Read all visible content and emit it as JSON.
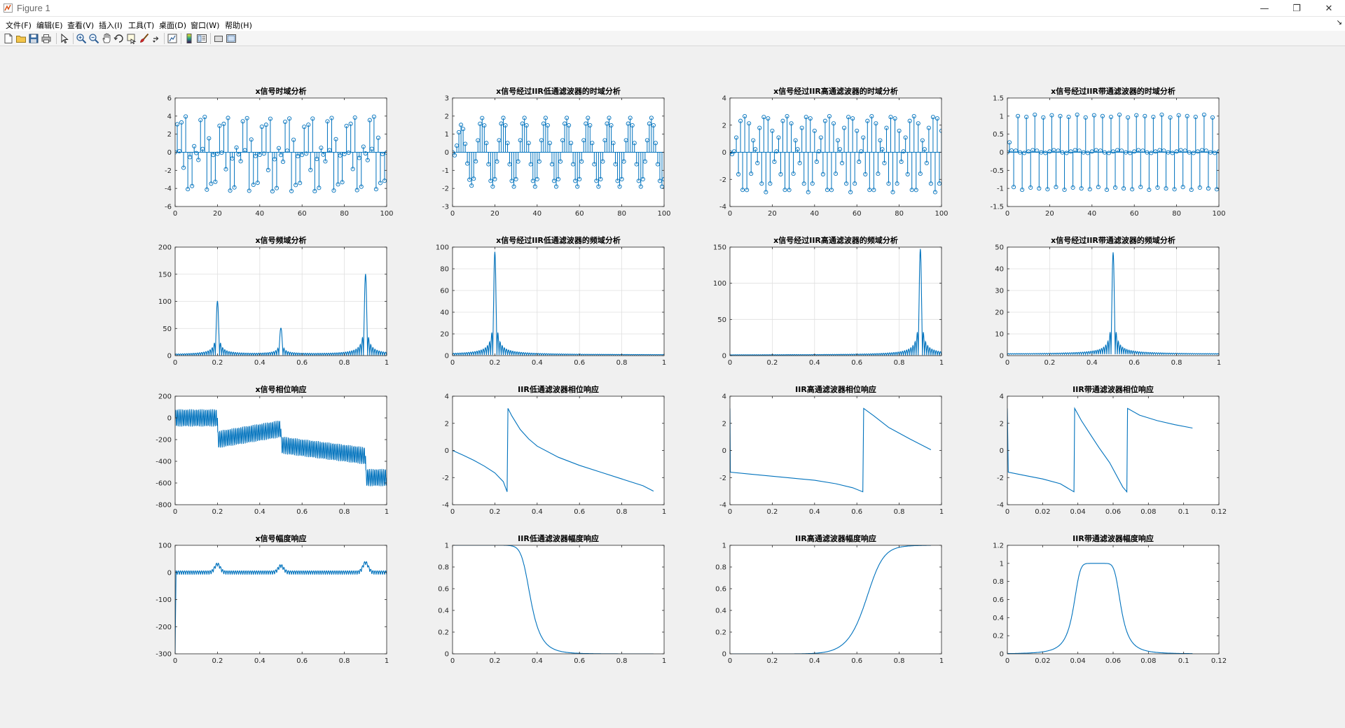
{
  "window": {
    "title": "Figure 1",
    "minimize_glyph": "—",
    "restore_glyph": "❐",
    "close_glyph": "✕"
  },
  "menu": {
    "items": [
      {
        "label": "文件(F)"
      },
      {
        "label": "编辑(E)"
      },
      {
        "label": "查看(V)"
      },
      {
        "label": "插入(I)"
      },
      {
        "label": "工具(T)"
      },
      {
        "label": "桌面(D)"
      },
      {
        "label": "窗口(W)"
      },
      {
        "label": "帮助(H)"
      }
    ],
    "overflow_glyph": "↘"
  },
  "toolbar": {
    "buttons": [
      {
        "name": "new-figure-icon"
      },
      {
        "name": "open-file-icon"
      },
      {
        "name": "save-icon"
      },
      {
        "name": "print-icon"
      },
      {
        "name": "edit-pointer-icon"
      },
      {
        "name": "zoom-in-icon"
      },
      {
        "name": "zoom-out-icon"
      },
      {
        "name": "pan-icon"
      },
      {
        "name": "rotate-3d-icon"
      },
      {
        "name": "data-cursor-icon"
      },
      {
        "name": "brush-icon"
      },
      {
        "name": "link-plot-icon"
      },
      {
        "name": "insert-colorbar-icon"
      },
      {
        "name": "insert-legend-icon"
      },
      {
        "name": "hide-plot-tools-icon"
      },
      {
        "name": "show-plot-tools-icon"
      }
    ]
  },
  "colors": {
    "plot_line": "#0072bd",
    "grid": "#dfdfdf",
    "axes_box": "#262626",
    "figure_bg": "#f0f0f0"
  },
  "chart_data": [
    {
      "id": "x-time",
      "type": "stem",
      "title": "x信号时域分析",
      "xlim": [
        0,
        100
      ],
      "ylim": [
        -6,
        6
      ],
      "xticks": [
        0,
        20,
        40,
        60,
        80,
        100
      ],
      "yticks": [
        -6,
        -4,
        -2,
        0,
        2,
        4,
        6
      ],
      "grid": false,
      "signal": "x_time",
      "n": [
        0,
        100
      ]
    },
    {
      "id": "lp-time",
      "type": "stem",
      "title": "x信号经过IIR低通滤波器的时域分析",
      "xlim": [
        0,
        100
      ],
      "ylim": [
        -3,
        3
      ],
      "xticks": [
        0,
        20,
        40,
        60,
        80,
        100
      ],
      "yticks": [
        -3,
        -2,
        -1,
        0,
        1,
        2,
        3
      ],
      "grid": false,
      "signal": "lp_time",
      "n": [
        0,
        100
      ]
    },
    {
      "id": "hp-time",
      "type": "stem",
      "title": "x信号经过IIR高通滤波器的时域分析",
      "xlim": [
        0,
        100
      ],
      "ylim": [
        -4,
        4
      ],
      "xticks": [
        0,
        20,
        40,
        60,
        80,
        100
      ],
      "yticks": [
        -4,
        -2,
        0,
        2,
        4
      ],
      "grid": false,
      "signal": "hp_time",
      "n": [
        0,
        100
      ]
    },
    {
      "id": "bp-time",
      "type": "stem",
      "title": "x信号经过IIR带通滤波器的时域分析",
      "xlim": [
        0,
        100
      ],
      "ylim": [
        -1.5,
        1.5
      ],
      "xticks": [
        0,
        20,
        40,
        60,
        80,
        100
      ],
      "yticks": [
        -1.5,
        -1,
        -0.5,
        0,
        0.5,
        1,
        1.5
      ],
      "grid": false,
      "signal": "bp_time",
      "n": [
        0,
        100
      ]
    },
    {
      "id": "x-freq",
      "type": "line",
      "title": "x信号频域分析",
      "xlim": [
        0,
        1
      ],
      "ylim": [
        0,
        200
      ],
      "xticks": [
        0,
        0.2,
        0.4,
        0.6,
        0.8,
        1
      ],
      "yticks": [
        0,
        50,
        100,
        150,
        200
      ],
      "grid": true,
      "peaks": [
        {
          "f": 0.2,
          "a": 100
        },
        {
          "f": 0.5,
          "a": 50
        },
        {
          "f": 0.9,
          "a": 150
        }
      ],
      "x_range": [
        0,
        1
      ]
    },
    {
      "id": "lp-freq",
      "type": "line",
      "title": "x信号经过IIR低通滤波器的频域分析",
      "xlim": [
        0,
        1
      ],
      "ylim": [
        0,
        100
      ],
      "xticks": [
        0,
        0.2,
        0.4,
        0.6,
        0.8,
        1
      ],
      "yticks": [
        0,
        20,
        40,
        60,
        80,
        100
      ],
      "grid": true,
      "peaks": [
        {
          "f": 0.2,
          "a": 95
        }
      ],
      "x_range": [
        0,
        1
      ]
    },
    {
      "id": "hp-freq",
      "type": "line",
      "title": "x信号经过IIR高通滤波器的频域分析",
      "xlim": [
        0,
        1
      ],
      "ylim": [
        0,
        150
      ],
      "xticks": [
        0,
        0.2,
        0.4,
        0.6,
        0.8,
        1
      ],
      "yticks": [
        0,
        50,
        100,
        150
      ],
      "grid": true,
      "peaks": [
        {
          "f": 0.9,
          "a": 147
        }
      ],
      "x_range": [
        0,
        1
      ]
    },
    {
      "id": "bp-freq",
      "type": "line",
      "title": "x信号经过IIR带通滤波器的频域分析",
      "xlim": [
        0,
        1
      ],
      "ylim": [
        0,
        50
      ],
      "xticks": [
        0,
        0.2,
        0.4,
        0.6,
        0.8,
        1
      ],
      "yticks": [
        0,
        10,
        20,
        30,
        40,
        50
      ],
      "grid": true,
      "peaks": [
        {
          "f": 0.5,
          "a": 47
        }
      ],
      "x_range": [
        0,
        1
      ]
    },
    {
      "id": "x-phase",
      "type": "line",
      "title": "x信号相位响应",
      "xlim": [
        0,
        1
      ],
      "ylim": [
        -800,
        200
      ],
      "xticks": [
        0,
        0.2,
        0.4,
        0.6,
        0.8,
        1
      ],
      "yticks": [
        -800,
        -600,
        -400,
        -200,
        0,
        200
      ],
      "grid": false,
      "segments": [
        {
          "x": [
            0,
            0.2
          ],
          "y": [
            0,
            0
          ]
        },
        {
          "x": [
            0.2,
            0.5
          ],
          "y": [
            -200,
            -100
          ]
        },
        {
          "x": [
            0.5,
            0.9
          ],
          "y": [
            -250,
            -350
          ]
        },
        {
          "x": [
            0.9,
            1
          ],
          "y": [
            -550,
            -550
          ]
        }
      ],
      "ripple": 150,
      "x_range": [
        0,
        1
      ]
    },
    {
      "id": "lp-phase",
      "type": "line",
      "title": "IIR低通滤波器相位响应",
      "xlim": [
        0,
        1
      ],
      "ylim": [
        -4,
        4
      ],
      "xticks": [
        0,
        0.2,
        0.4,
        0.6,
        0.8,
        1
      ],
      "yticks": [
        -4,
        -2,
        0,
        2,
        4
      ],
      "grid": false,
      "points": [
        [
          0,
          0
        ],
        [
          0.05,
          -0.35
        ],
        [
          0.1,
          -0.72
        ],
        [
          0.15,
          -1.15
        ],
        [
          0.2,
          -1.65
        ],
        [
          0.24,
          -2.3
        ],
        [
          0.258,
          -3.05
        ],
        [
          0.262,
          3.1
        ],
        [
          0.28,
          2.55
        ],
        [
          0.32,
          1.55
        ],
        [
          0.36,
          0.85
        ],
        [
          0.4,
          0.32
        ],
        [
          0.5,
          -0.5
        ],
        [
          0.6,
          -1.1
        ],
        [
          0.7,
          -1.6
        ],
        [
          0.8,
          -2.1
        ],
        [
          0.9,
          -2.6
        ],
        [
          0.95,
          -3.0
        ]
      ],
      "x_range": [
        0,
        0.95
      ]
    },
    {
      "id": "hp-phase",
      "type": "line",
      "title": "IIR高通滤波器相位响应",
      "xlim": [
        0,
        1
      ],
      "ylim": [
        -4,
        4
      ],
      "xticks": [
        0,
        0.2,
        0.4,
        0.6,
        0.8,
        1
      ],
      "yticks": [
        -4,
        -2,
        0,
        2,
        4
      ],
      "grid": false,
      "points": [
        [
          0,
          3.1
        ],
        [
          0.002,
          -1.6
        ],
        [
          0.1,
          -1.75
        ],
        [
          0.2,
          -1.9
        ],
        [
          0.3,
          -2.05
        ],
        [
          0.4,
          -2.2
        ],
        [
          0.5,
          -2.45
        ],
        [
          0.58,
          -2.75
        ],
        [
          0.628,
          -3.05
        ],
        [
          0.632,
          3.1
        ],
        [
          0.68,
          2.55
        ],
        [
          0.75,
          1.7
        ],
        [
          0.85,
          0.85
        ],
        [
          0.95,
          0.05
        ]
      ],
      "x_range": [
        0,
        0.95
      ]
    },
    {
      "id": "bp-phase",
      "type": "line",
      "title": "IIR带通滤波器相位响应",
      "xlim": [
        0,
        0.12
      ],
      "ylim": [
        -4,
        4
      ],
      "xticks": [
        0,
        0.02,
        0.04,
        0.06,
        0.08,
        0.1,
        0.12
      ],
      "yticks": [
        -4,
        -2,
        0,
        2,
        4
      ],
      "grid": false,
      "points": [
        [
          0,
          3.1
        ],
        [
          0.0005,
          -1.6
        ],
        [
          0.01,
          -1.85
        ],
        [
          0.02,
          -2.1
        ],
        [
          0.03,
          -2.45
        ],
        [
          0.0378,
          -3.05
        ],
        [
          0.0382,
          3.1
        ],
        [
          0.042,
          2.2
        ],
        [
          0.047,
          1.2
        ],
        [
          0.052,
          0.2
        ],
        [
          0.058,
          -0.9
        ],
        [
          0.0655,
          -2.7
        ],
        [
          0.0678,
          -3.05
        ],
        [
          0.0682,
          3.1
        ],
        [
          0.075,
          2.6
        ],
        [
          0.085,
          2.2
        ],
        [
          0.095,
          1.9
        ],
        [
          0.105,
          1.65
        ]
      ],
      "x_range": [
        0,
        0.105
      ]
    },
    {
      "id": "x-mag",
      "type": "line",
      "title": "x信号幅度响应",
      "xlim": [
        0,
        1
      ],
      "ylim": [
        -300,
        100
      ],
      "xticks": [
        0,
        0.2,
        0.4,
        0.6,
        0.8,
        1
      ],
      "yticks": [
        -300,
        -200,
        -100,
        0,
        100
      ],
      "grid": false,
      "x_range": [
        0,
        1
      ]
    },
    {
      "id": "lp-mag",
      "type": "line",
      "title": "IIR低通滤波器幅度响应",
      "xlim": [
        0,
        1
      ],
      "ylim": [
        0,
        1
      ],
      "xticks": [
        0,
        0.2,
        0.4,
        0.6,
        0.8,
        1
      ],
      "yticks": [
        0,
        0.2,
        0.4,
        0.6,
        0.8,
        1
      ],
      "grid": false,
      "cutoff": 0.35,
      "order": 10,
      "x_range": [
        0,
        0.95
      ]
    },
    {
      "id": "hp-mag",
      "type": "line",
      "title": "IIR高通滤波器幅度响应",
      "xlim": [
        0,
        1
      ],
      "ylim": [
        0,
        1
      ],
      "xticks": [
        0,
        0.2,
        0.4,
        0.6,
        0.8,
        1
      ],
      "yticks": [
        0,
        0.2,
        0.4,
        0.6,
        0.8,
        1
      ],
      "grid": false,
      "cutoff": 0.68,
      "order": 10,
      "x_range": [
        0,
        0.95
      ]
    },
    {
      "id": "bp-mag",
      "type": "line",
      "title": "IIR带通滤波器幅度响应",
      "xlim": [
        0,
        0.12
      ],
      "ylim": [
        0,
        1.2
      ],
      "xticks": [
        0,
        0.02,
        0.04,
        0.06,
        0.08,
        0.1,
        0.12
      ],
      "yticks": [
        0,
        0.2,
        0.4,
        0.6,
        0.8,
        1,
        1.2
      ],
      "grid": false,
      "band": [
        0.044,
        0.058
      ],
      "x_range": [
        0,
        0.105
      ]
    }
  ]
}
